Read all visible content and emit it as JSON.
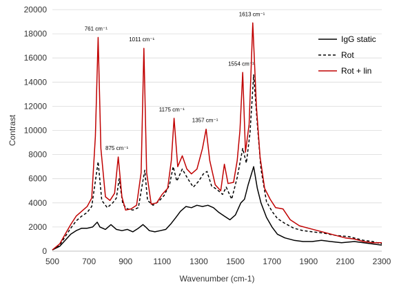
{
  "chart_data": {
    "type": "line",
    "title": "",
    "xlabel": "Wavenumber (cm-1)",
    "ylabel": "Contrast",
    "xlim": [
      500,
      2300
    ],
    "ylim": [
      0,
      20000
    ],
    "x_ticks": [
      500,
      700,
      900,
      1100,
      1300,
      1500,
      1700,
      1900,
      2100,
      2300
    ],
    "y_ticks": [
      0,
      2000,
      4000,
      6000,
      8000,
      10000,
      12000,
      14000,
      16000,
      18000,
      20000
    ],
    "grid": "horizontal",
    "legend_position": "top-right",
    "series": [
      {
        "name": "IgG static",
        "color": "#000000",
        "dash": "solid",
        "points": [
          [
            500,
            100
          ],
          [
            540,
            400
          ],
          [
            570,
            900
          ],
          [
            600,
            1400
          ],
          [
            630,
            1700
          ],
          [
            660,
            1900
          ],
          [
            690,
            1900
          ],
          [
            720,
            2000
          ],
          [
            745,
            2400
          ],
          [
            760,
            2000
          ],
          [
            790,
            1800
          ],
          [
            820,
            2200
          ],
          [
            850,
            1800
          ],
          [
            880,
            1700
          ],
          [
            910,
            1800
          ],
          [
            940,
            1600
          ],
          [
            970,
            1900
          ],
          [
            995,
            2200
          ],
          [
            1010,
            2000
          ],
          [
            1030,
            1700
          ],
          [
            1060,
            1600
          ],
          [
            1090,
            1700
          ],
          [
            1120,
            1800
          ],
          [
            1150,
            2300
          ],
          [
            1175,
            2800
          ],
          [
            1200,
            3300
          ],
          [
            1230,
            3700
          ],
          [
            1260,
            3600
          ],
          [
            1290,
            3800
          ],
          [
            1320,
            3700
          ],
          [
            1350,
            3800
          ],
          [
            1380,
            3600
          ],
          [
            1410,
            3200
          ],
          [
            1440,
            2900
          ],
          [
            1470,
            2600
          ],
          [
            1500,
            3000
          ],
          [
            1530,
            4000
          ],
          [
            1550,
            4300
          ],
          [
            1570,
            5500
          ],
          [
            1600,
            7000
          ],
          [
            1620,
            5200
          ],
          [
            1640,
            4000
          ],
          [
            1670,
            2800
          ],
          [
            1700,
            2000
          ],
          [
            1730,
            1400
          ],
          [
            1770,
            1100
          ],
          [
            1820,
            900
          ],
          [
            1870,
            800
          ],
          [
            1920,
            800
          ],
          [
            1970,
            900
          ],
          [
            2020,
            800
          ],
          [
            2080,
            700
          ],
          [
            2150,
            800
          ],
          [
            2200,
            700
          ],
          [
            2250,
            600
          ],
          [
            2300,
            500
          ]
        ]
      },
      {
        "name": "Rot",
        "color": "#000000",
        "dash": "dashed",
        "points": [
          [
            500,
            100
          ],
          [
            540,
            500
          ],
          [
            570,
            1200
          ],
          [
            600,
            1900
          ],
          [
            630,
            2500
          ],
          [
            660,
            2900
          ],
          [
            690,
            3200
          ],
          [
            715,
            3700
          ],
          [
            735,
            5800
          ],
          [
            750,
            7400
          ],
          [
            770,
            4200
          ],
          [
            800,
            3600
          ],
          [
            830,
            4000
          ],
          [
            850,
            4400
          ],
          [
            865,
            6000
          ],
          [
            885,
            3900
          ],
          [
            910,
            3500
          ],
          [
            940,
            3400
          ],
          [
            970,
            3600
          ],
          [
            990,
            5400
          ],
          [
            1005,
            6700
          ],
          [
            1020,
            4200
          ],
          [
            1050,
            3800
          ],
          [
            1080,
            4100
          ],
          [
            1110,
            4600
          ],
          [
            1140,
            5500
          ],
          [
            1160,
            7000
          ],
          [
            1180,
            5800
          ],
          [
            1210,
            6800
          ],
          [
            1240,
            6000
          ],
          [
            1270,
            5300
          ],
          [
            1300,
            5800
          ],
          [
            1325,
            6400
          ],
          [
            1345,
            6600
          ],
          [
            1370,
            5400
          ],
          [
            1400,
            5100
          ],
          [
            1430,
            4700
          ],
          [
            1450,
            5300
          ],
          [
            1480,
            4300
          ],
          [
            1510,
            6100
          ],
          [
            1540,
            8500
          ],
          [
            1560,
            7300
          ],
          [
            1580,
            9800
          ],
          [
            1600,
            14600
          ],
          [
            1620,
            10500
          ],
          [
            1640,
            6800
          ],
          [
            1670,
            4100
          ],
          [
            1700,
            3300
          ],
          [
            1730,
            2700
          ],
          [
            1770,
            2300
          ],
          [
            1820,
            1900
          ],
          [
            1870,
            1700
          ],
          [
            1920,
            1600
          ],
          [
            1980,
            1500
          ],
          [
            2050,
            1300
          ],
          [
            2120,
            1200
          ],
          [
            2200,
            900
          ],
          [
            2250,
            800
          ],
          [
            2300,
            600
          ]
        ]
      },
      {
        "name": "Rot + lin",
        "color": "#c00000",
        "dash": "solid",
        "points": [
          [
            500,
            100
          ],
          [
            540,
            600
          ],
          [
            570,
            1400
          ],
          [
            600,
            2200
          ],
          [
            630,
            2900
          ],
          [
            660,
            3300
          ],
          [
            690,
            3700
          ],
          [
            715,
            4400
          ],
          [
            735,
            9500
          ],
          [
            750,
            17700
          ],
          [
            765,
            8500
          ],
          [
            790,
            4500
          ],
          [
            815,
            4200
          ],
          [
            840,
            4800
          ],
          [
            860,
            7800
          ],
          [
            880,
            4500
          ],
          [
            900,
            3400
          ],
          [
            930,
            3500
          ],
          [
            960,
            3800
          ],
          [
            985,
            6500
          ],
          [
            1000,
            16800
          ],
          [
            1015,
            6500
          ],
          [
            1040,
            3900
          ],
          [
            1070,
            4000
          ],
          [
            1100,
            4700
          ],
          [
            1130,
            5200
          ],
          [
            1150,
            7500
          ],
          [
            1165,
            11000
          ],
          [
            1185,
            7000
          ],
          [
            1210,
            7900
          ],
          [
            1235,
            6800
          ],
          [
            1260,
            6400
          ],
          [
            1290,
            6800
          ],
          [
            1320,
            8500
          ],
          [
            1340,
            10100
          ],
          [
            1360,
            7500
          ],
          [
            1390,
            5500
          ],
          [
            1420,
            5000
          ],
          [
            1440,
            7200
          ],
          [
            1460,
            5600
          ],
          [
            1490,
            5700
          ],
          [
            1510,
            7500
          ],
          [
            1525,
            10000
          ],
          [
            1540,
            14800
          ],
          [
            1555,
            8200
          ],
          [
            1575,
            10500
          ],
          [
            1595,
            18900
          ],
          [
            1615,
            12000
          ],
          [
            1635,
            7800
          ],
          [
            1660,
            5200
          ],
          [
            1690,
            4300
          ],
          [
            1720,
            3600
          ],
          [
            1760,
            3500
          ],
          [
            1800,
            2600
          ],
          [
            1850,
            2100
          ],
          [
            1900,
            1900
          ],
          [
            1950,
            1700
          ],
          [
            2000,
            1500
          ],
          [
            2050,
            1300
          ],
          [
            2100,
            1100
          ],
          [
            2150,
            1000
          ],
          [
            2200,
            800
          ],
          [
            2250,
            700
          ],
          [
            2300,
            700
          ]
        ]
      }
    ],
    "annotations": [
      {
        "text": "761 cm⁻¹",
        "x": 761,
        "y": 17700
      },
      {
        "text": "875 cm⁻¹",
        "x": 875,
        "y": 7800
      },
      {
        "text": "1011 cm⁻¹",
        "x": 1011,
        "y": 16800
      },
      {
        "text": "1175 cm⁻¹",
        "x": 1175,
        "y": 11000
      },
      {
        "text": "1357 cm⁻¹",
        "x": 1357,
        "y": 10100
      },
      {
        "text": "1554 cm⁻¹",
        "x": 1554,
        "y": 14800
      },
      {
        "text": "1613 cm⁻¹",
        "x": 1613,
        "y": 18900
      }
    ]
  }
}
